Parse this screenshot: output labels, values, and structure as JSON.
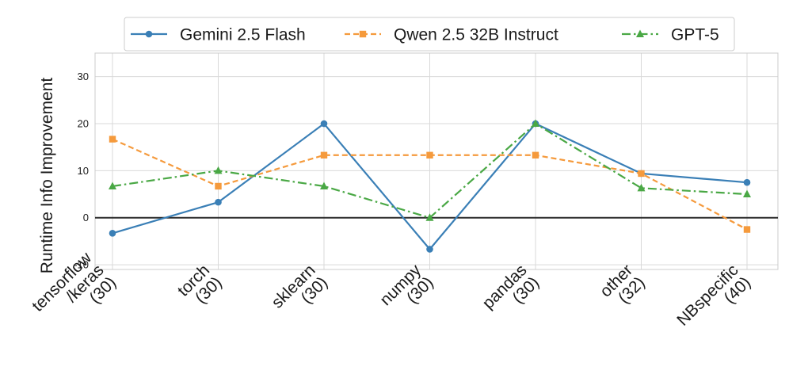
{
  "chart_data": {
    "type": "line",
    "title": "",
    "xlabel": "",
    "ylabel": "Runtime Info Improvement",
    "ylim": [
      -11,
      35
    ],
    "yticks": [
      -10,
      0,
      10,
      20,
      30
    ],
    "grid": true,
    "legend_position": "top-center",
    "categories": [
      [
        "tensorflow",
        "/keras",
        "(30)"
      ],
      [
        "torch",
        "(30)"
      ],
      [
        "sklearn",
        "(30)"
      ],
      [
        "numpy",
        "(30)"
      ],
      [
        "pandas",
        "(30)"
      ],
      [
        "other",
        "(32)"
      ],
      [
        "NBspecific",
        "(40)"
      ]
    ],
    "series": [
      {
        "name": "Gemini 2.5 Flash",
        "color": "#3a7fb6",
        "dash": "solid",
        "marker": "circle",
        "values": [
          -3.3,
          3.3,
          20.0,
          -6.7,
          20.0,
          9.4,
          7.5
        ]
      },
      {
        "name": "Qwen 2.5 32B Instruct",
        "color": "#f59a3c",
        "dash": "dashed",
        "marker": "square",
        "values": [
          16.7,
          6.7,
          13.3,
          13.3,
          13.3,
          9.4,
          -2.5
        ]
      },
      {
        "name": "GPT-5",
        "color": "#4aa845",
        "dash": "dashdot",
        "marker": "triangle",
        "values": [
          6.7,
          10.0,
          6.7,
          0.0,
          20.0,
          6.3,
          5.0
        ]
      }
    ],
    "reference_line": {
      "y": 0,
      "color": "#2b2b2b"
    }
  }
}
